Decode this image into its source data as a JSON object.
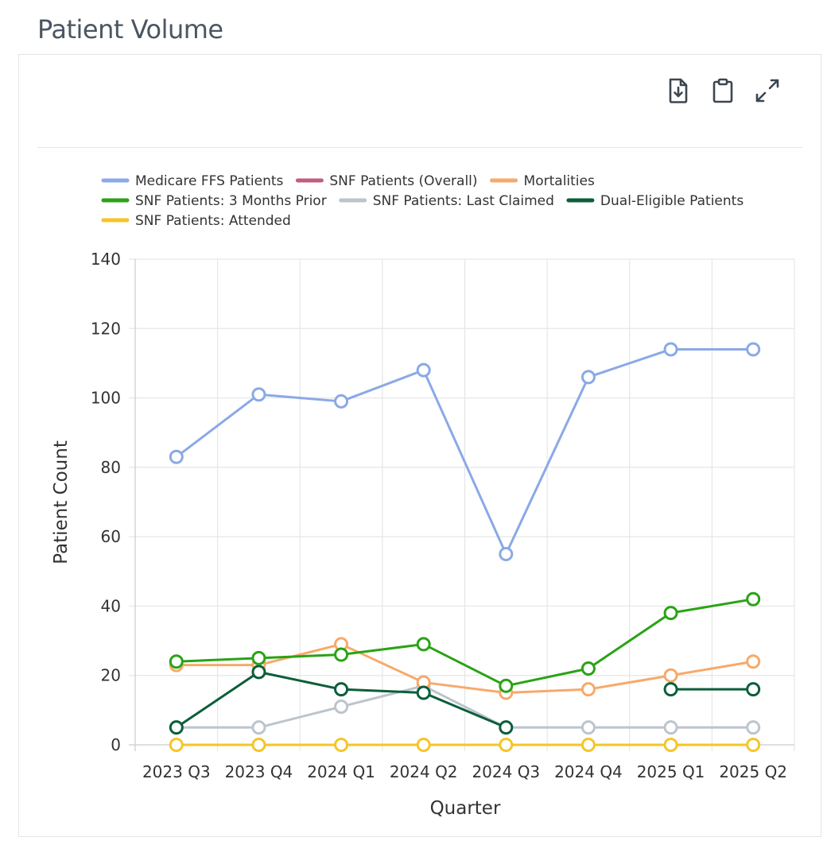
{
  "page": {
    "title": "Patient Volume"
  },
  "toolbar": {
    "buttons": [
      {
        "name": "download-icon"
      },
      {
        "name": "clipboard-icon"
      },
      {
        "name": "expand-icon"
      }
    ]
  },
  "chart_data": {
    "type": "line",
    "categories": [
      "2023 Q3",
      "2023 Q4",
      "2024 Q1",
      "2024 Q2",
      "2024 Q3",
      "2024 Q4",
      "2025 Q1",
      "2025 Q2"
    ],
    "xlabel": "Quarter",
    "ylabel": "Patient Count",
    "ylim": [
      0,
      140
    ],
    "yticks": [
      0,
      20,
      40,
      60,
      80,
      100,
      120,
      140
    ],
    "grid": true,
    "legend_position": "top",
    "series": [
      {
        "name": "Medicare FFS Patients",
        "color": "#8aa9e6",
        "values": [
          83,
          101,
          99,
          108,
          55,
          106,
          114,
          114
        ]
      },
      {
        "name": "SNF Patients (Overall)",
        "color": "#c45b82",
        "values": [
          null,
          null,
          null,
          null,
          null,
          null,
          null,
          null
        ]
      },
      {
        "name": "Mortalities",
        "color": "#f7a96a",
        "values": [
          23,
          23,
          29,
          18,
          15,
          16,
          20,
          24
        ]
      },
      {
        "name": "SNF Patients: 3 Months Prior",
        "color": "#2aa315",
        "values": [
          24,
          25,
          26,
          29,
          17,
          22,
          38,
          42
        ]
      },
      {
        "name": "SNF Patients: Last Claimed",
        "color": "#bcc4cc",
        "values": [
          5,
          5,
          11,
          17,
          5,
          5,
          5,
          5
        ]
      },
      {
        "name": "Dual-Eligible Patients",
        "color": "#0b5e3a",
        "values": [
          5,
          21,
          16,
          15,
          5,
          null,
          16,
          16
        ]
      },
      {
        "name": "SNF Patients: Attended",
        "color": "#f5c527",
        "values": [
          0,
          0,
          0,
          0,
          0,
          0,
          0,
          0
        ]
      }
    ]
  }
}
